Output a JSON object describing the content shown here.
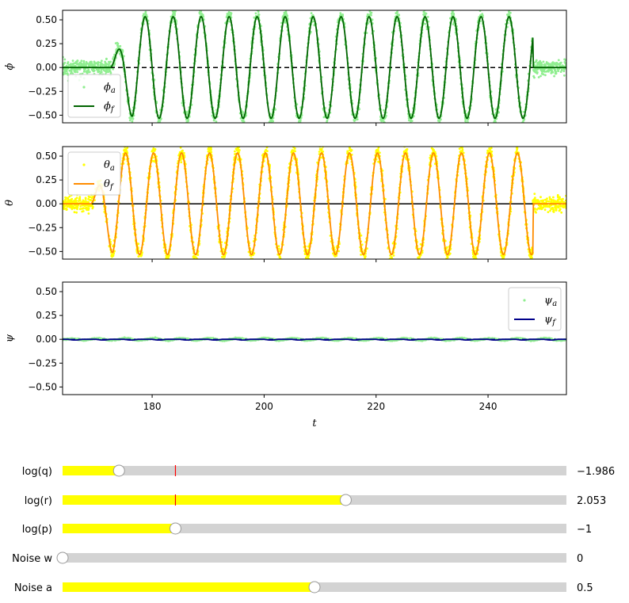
{
  "chart_data": [
    {
      "type": "line",
      "ylabel": "ϕ",
      "xlim": [
        164,
        254
      ],
      "ylim": [
        -0.58,
        0.6
      ],
      "yticks": [
        "0.50",
        "0.25",
        "0.00",
        "−0.25",
        "−0.50"
      ],
      "legend_position": "lower-left",
      "colors": {
        "measured": "#90ee90",
        "filtered": "#006400",
        "reference": "#000000"
      },
      "reference_style": "dashed",
      "series": [
        {
          "name": "ϕa",
          "role": "measured",
          "style": "points"
        },
        {
          "name": "ϕf",
          "role": "filtered",
          "style": "line"
        }
      ],
      "signal": {
        "start": 172.5,
        "end": 248.0,
        "period": 5.0,
        "amplitude": 0.55,
        "noise": 0.05
      }
    },
    {
      "type": "line",
      "ylabel": "θ",
      "xlim": [
        164,
        254
      ],
      "ylim": [
        -0.58,
        0.6
      ],
      "yticks": [
        "0.50",
        "0.25",
        "0.00",
        "−0.25",
        "−0.50"
      ],
      "legend_position": "upper-left",
      "colors": {
        "measured": "#ffff00",
        "filtered": "#ff8c00",
        "reference": "#000000"
      },
      "reference_style": "solid",
      "series": [
        {
          "name": "θa",
          "role": "measured",
          "style": "points"
        },
        {
          "name": "θf",
          "role": "filtered",
          "style": "line"
        }
      ],
      "signal": {
        "start": 169.0,
        "end": 248.0,
        "period": 5.0,
        "amplitude": 0.55,
        "noise": 0.05
      }
    },
    {
      "type": "line",
      "ylabel": "ψ",
      "xlabel": "t",
      "xlim": [
        164,
        254
      ],
      "ylim": [
        -0.58,
        0.6
      ],
      "yticks": [
        "0.50",
        "0.25",
        "0.00",
        "−0.25",
        "−0.50"
      ],
      "xticks": [
        180,
        200,
        220,
        240
      ],
      "legend_position": "upper-right",
      "colors": {
        "measured": "#90ee90",
        "filtered": "#00008b",
        "reference": "#00008b"
      },
      "reference_style": "dashed",
      "series": [
        {
          "name": "ψa",
          "role": "measured",
          "style": "points"
        },
        {
          "name": "ψf",
          "role": "filtered",
          "style": "line"
        }
      ],
      "signal": {
        "start": 164,
        "end": 254,
        "period": 5.0,
        "amplitude": 0.01,
        "noise": 0.003
      }
    }
  ],
  "sliders": [
    {
      "label": "log(q)",
      "value_text": "−1.986",
      "fraction": 0.112,
      "initial_fraction": 0.224,
      "fill_color": "#ffff00"
    },
    {
      "label": "log(r)",
      "value_text": "2.053",
      "fraction": 0.562,
      "initial_fraction": 0.224,
      "fill_color": "#ffff00"
    },
    {
      "label": "log(p)",
      "value_text": "−1",
      "fraction": 0.224,
      "initial_fraction": null,
      "fill_color": "#ffff00"
    },
    {
      "label": "Noise w",
      "value_text": "0",
      "fraction": 0.0,
      "initial_fraction": null,
      "fill_color": "#ffff00"
    },
    {
      "label": "Noise a",
      "value_text": "0.5",
      "fraction": 0.5,
      "initial_fraction": null,
      "fill_color": "#ffff00"
    }
  ]
}
